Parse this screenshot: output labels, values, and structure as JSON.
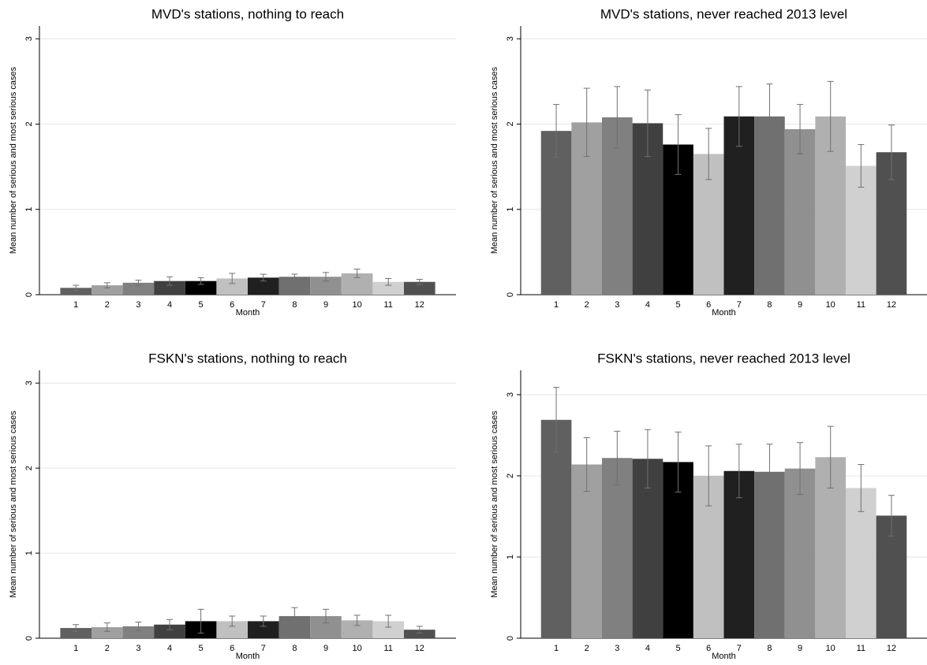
{
  "chart_data": [
    {
      "type": "bar",
      "title": "MVD's stations, nothing to reach",
      "x_label": "Month",
      "y_label": "Mean number of serious and most serious cases",
      "categories": [
        "1",
        "2",
        "3",
        "4",
        "5",
        "6",
        "7",
        "8",
        "9",
        "10",
        "11",
        "12"
      ],
      "values": [
        0.08,
        0.11,
        0.14,
        0.16,
        0.16,
        0.19,
        0.2,
        0.21,
        0.21,
        0.25,
        0.15,
        0.15
      ],
      "errors": [
        0.03,
        0.03,
        0.03,
        0.05,
        0.04,
        0.06,
        0.04,
        0.03,
        0.05,
        0.05,
        0.04,
        0.03
      ],
      "colors": [
        "#606060",
        "#a0a0a0",
        "#808080",
        "#404040",
        "#000000",
        "#c0c0c0",
        "#202020",
        "#707070",
        "#909090",
        "#b0b0b0",
        "#d0d0d0",
        "#505050"
      ],
      "error_color": "#707070",
      "ylim": [
        0,
        3.15
      ],
      "yticks": [
        0,
        1,
        2,
        3
      ],
      "grid": true
    },
    {
      "type": "bar",
      "title": "MVD's stations, never reached 2013 level",
      "x_label": "Month",
      "y_label": "Mean number of serious and most serious cases",
      "categories": [
        "1",
        "2",
        "3",
        "4",
        "5",
        "6",
        "7",
        "8",
        "9",
        "10",
        "11",
        "12"
      ],
      "values": [
        1.92,
        2.02,
        2.08,
        2.01,
        1.76,
        1.65,
        2.09,
        2.09,
        1.94,
        2.09,
        1.51,
        1.67
      ],
      "errors": [
        0.31,
        0.4,
        0.36,
        0.39,
        0.35,
        0.3,
        0.35,
        0.38,
        0.29,
        0.41,
        0.25,
        0.32
      ],
      "colors": [
        "#606060",
        "#a0a0a0",
        "#808080",
        "#404040",
        "#000000",
        "#c0c0c0",
        "#202020",
        "#707070",
        "#909090",
        "#b0b0b0",
        "#d0d0d0",
        "#505050"
      ],
      "error_color": "#707070",
      "ylim": [
        0,
        3.15
      ],
      "yticks": [
        0,
        1,
        2,
        3
      ],
      "grid": true
    },
    {
      "type": "bar",
      "title": "FSKN's stations, nothing to reach",
      "x_label": "Month",
      "y_label": "Mean number of serious and most serious cases",
      "categories": [
        "1",
        "2",
        "3",
        "4",
        "5",
        "6",
        "7",
        "8",
        "9",
        "10",
        "11",
        "12"
      ],
      "values": [
        0.12,
        0.13,
        0.14,
        0.16,
        0.2,
        0.2,
        0.2,
        0.26,
        0.26,
        0.21,
        0.2,
        0.1
      ],
      "errors": [
        0.04,
        0.05,
        0.05,
        0.06,
        0.14,
        0.06,
        0.06,
        0.1,
        0.08,
        0.06,
        0.07,
        0.04
      ],
      "colors": [
        "#606060",
        "#a0a0a0",
        "#808080",
        "#404040",
        "#000000",
        "#c0c0c0",
        "#202020",
        "#707070",
        "#909090",
        "#b0b0b0",
        "#d0d0d0",
        "#505050"
      ],
      "error_color": "#707070",
      "ylim": [
        0,
        3.15
      ],
      "yticks": [
        0,
        1,
        2,
        3
      ],
      "grid": true
    },
    {
      "type": "bar",
      "title": "FSKN's stations, never reached 2013 level",
      "x_label": "Month",
      "y_label": "Mean number of serious and most serious cases",
      "categories": [
        "1",
        "2",
        "3",
        "4",
        "5",
        "6",
        "7",
        "8",
        "9",
        "10",
        "11",
        "12"
      ],
      "values": [
        2.69,
        2.14,
        2.22,
        2.21,
        2.17,
        2.0,
        2.06,
        2.05,
        2.09,
        2.23,
        1.85,
        1.51
      ],
      "errors": [
        0.4,
        0.33,
        0.33,
        0.36,
        0.37,
        0.37,
        0.33,
        0.34,
        0.32,
        0.38,
        0.29,
        0.25
      ],
      "colors": [
        "#606060",
        "#a0a0a0",
        "#808080",
        "#404040",
        "#000000",
        "#c0c0c0",
        "#202020",
        "#707070",
        "#909090",
        "#b0b0b0",
        "#d0d0d0",
        "#505050"
      ],
      "error_color": "#707070",
      "ylim": [
        0,
        3.3
      ],
      "yticks": [
        0,
        1,
        2,
        3
      ],
      "grid": true
    }
  ]
}
